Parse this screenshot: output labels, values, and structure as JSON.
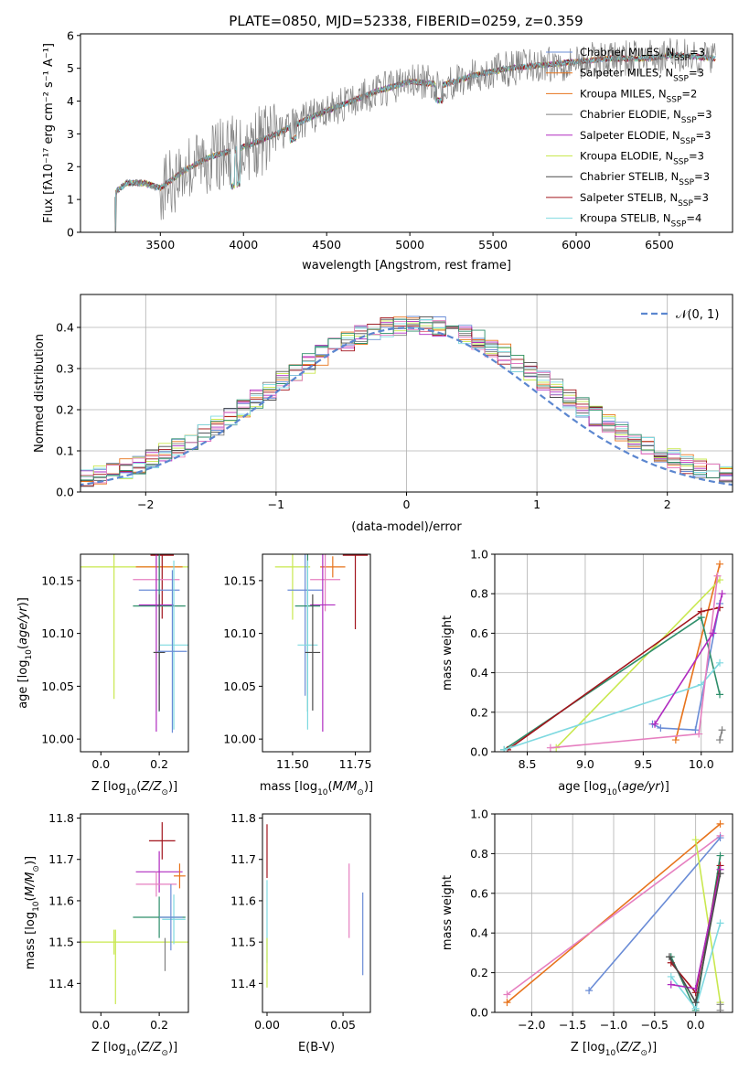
{
  "figure_title": "PLATE=0850, MJD=52338, FIBERID=0259, z=0.359",
  "colors": [
    "#6a8cd6",
    "#e7731b",
    "#7f7f7f",
    "#b02bc0",
    "#c9e84f",
    "#4a4a4a",
    "#a2141c",
    "#7ed9e0",
    "#e67fc0",
    "#2f8f6b"
  ],
  "chart_data": [
    {
      "id": "spectrum",
      "type": "line",
      "title": "PLATE=0850, MJD=52338, FIBERID=0259, z=0.359",
      "xlabel": "wavelength [Angstrom, rest frame]",
      "ylabel": "Flux [fλ10⁻¹⁷ erg cm⁻² s⁻¹ A⁻¹]",
      "xlim": [
        3020,
        6940
      ],
      "ylim": [
        0,
        6.05
      ],
      "xticks": [
        3500,
        4000,
        4500,
        5000,
        5500,
        6000,
        6500
      ],
      "yticks": [
        0,
        1,
        2,
        3,
        4,
        5,
        6
      ],
      "grid": false,
      "legend_position": "top-right",
      "data_x_range": [
        3225,
        6840
      ],
      "continuum": [
        [
          3225,
          1.2
        ],
        [
          3300,
          1.5
        ],
        [
          3400,
          1.5
        ],
        [
          3500,
          1.35
        ],
        [
          3650,
          1.9
        ],
        [
          3800,
          2.3
        ],
        [
          4000,
          2.6
        ],
        [
          4200,
          3.0
        ],
        [
          4400,
          3.5
        ],
        [
          4600,
          3.9
        ],
        [
          4800,
          4.3
        ],
        [
          5000,
          4.6
        ],
        [
          5200,
          4.5
        ],
        [
          5400,
          4.8
        ],
        [
          5600,
          5.0
        ],
        [
          5800,
          5.1
        ],
        [
          6000,
          5.2
        ],
        [
          6200,
          5.3
        ],
        [
          6400,
          5.3
        ],
        [
          6600,
          5.4
        ],
        [
          6840,
          5.3
        ]
      ],
      "series": [
        {
          "name": "Chabrier MILES",
          "nssp": "3"
        },
        {
          "name": "Salpeter MILES",
          "nssp": "3"
        },
        {
          "name": "Kroupa MILES",
          "nssp": "2"
        },
        {
          "name": "Chabrier ELODIE",
          "nssp": "3"
        },
        {
          "name": "Salpeter ELODIE",
          "nssp": "3"
        },
        {
          "name": "Kroupa ELODIE",
          "nssp": "3"
        },
        {
          "name": "Chabrier STELIB",
          "nssp": "3"
        },
        {
          "name": "Salpeter STELIB",
          "nssp": "3"
        },
        {
          "name": "Kroupa STELIB",
          "nssp": "4"
        }
      ],
      "legend_color_index": [
        0,
        1,
        1,
        2,
        3,
        4,
        5,
        6,
        7
      ],
      "nssp_label": "N",
      "nssp_sub": "SSP"
    },
    {
      "id": "residuals",
      "type": "histogram",
      "xlabel": "(data-model)/error",
      "ylabel": "Normed distribution",
      "xlim": [
        -2.5,
        2.5
      ],
      "ylim": [
        0,
        0.48
      ],
      "xticks": [
        -2,
        -1,
        0,
        1,
        2
      ],
      "yticks": [
        0,
        0.1,
        0.2,
        0.3,
        0.4
      ],
      "ytick_labels": [
        "0.0",
        "0.1",
        "0.2",
        "0.3",
        "0.4"
      ],
      "xtick_labels": [
        "−2",
        "−1",
        "0",
        "1",
        "2"
      ],
      "grid": true,
      "bin_width": 0.1,
      "reference_curve": {
        "name": "𝒩(0, 1)",
        "mean": 0,
        "sigma": 1,
        "style": "dashed"
      },
      "legend_position": "top-right"
    },
    {
      "id": "age_vs_Z",
      "type": "errorbar",
      "xlabel": "Z [log10(Z/Z⊙)]",
      "ylabel": "age  [log10(age/yr)]",
      "xlim": [
        -0.07,
        0.3
      ],
      "ylim": [
        9.988,
        10.175
      ],
      "xticks": [
        0,
        0.2
      ],
      "xtick_labels": [
        "0.0",
        "0.2"
      ],
      "yticks": [
        10.0,
        10.05,
        10.1,
        10.15
      ],
      "ytick_labels": [
        "10.00",
        "10.05",
        "10.10",
        "10.15"
      ],
      "points": [
        {
          "x": 0.045,
          "y": 10.163,
          "xerr": 0.26,
          "yerr": 0.125,
          "color": 4
        },
        {
          "x": 0.2,
          "y": 10.163,
          "xerr": 0.08,
          "yerr": 0.01,
          "color": 1
        },
        {
          "x": 0.21,
          "y": 10.174,
          "xerr": 0.04,
          "yerr": 0.06,
          "color": 6
        },
        {
          "x": 0.19,
          "y": 10.151,
          "xerr": 0.08,
          "yerr": 0.02,
          "color": 8
        },
        {
          "x": 0.2,
          "y": 10.141,
          "xerr": 0.07,
          "yerr": 0.09,
          "color": 0
        },
        {
          "x": 0.2,
          "y": 10.126,
          "xerr": 0.09,
          "yerr": 0.1,
          "color": 9
        },
        {
          "x": 0.19,
          "y": 10.127,
          "xerr": 0.06,
          "yerr": 0.12,
          "color": 3
        },
        {
          "x": 0.25,
          "y": 10.089,
          "xerr": 0.05,
          "yerr": 0.08,
          "color": 7
        },
        {
          "x": 0.2,
          "y": 10.082,
          "xerr": 0.02,
          "yerr": 0.055,
          "color": 5
        },
        {
          "x": 0.245,
          "y": 10.083,
          "xerr": 0.05,
          "yerr": 0.077,
          "color": 0
        }
      ]
    },
    {
      "id": "age_vs_mass",
      "type": "errorbar",
      "xlabel": "mass [log10(M/M⊙)]",
      "ylabel": "",
      "xlim": [
        11.38,
        11.81
      ],
      "ylim": [
        9.988,
        10.175
      ],
      "xticks": [
        11.5,
        11.75
      ],
      "xtick_labels": [
        "11.50",
        "11.75"
      ],
      "yticks": [
        10.0,
        10.05,
        10.1,
        10.15
      ],
      "ytick_labels": [
        "10.00",
        "10.05",
        "10.10",
        "10.15"
      ],
      "points": [
        {
          "x": 11.5,
          "y": 10.163,
          "xerr": 0.07,
          "yerr": 0.05,
          "color": 4
        },
        {
          "x": 11.66,
          "y": 10.163,
          "xerr": 0.05,
          "yerr": 0.01,
          "color": 1
        },
        {
          "x": 11.75,
          "y": 10.174,
          "xerr": 0.05,
          "yerr": 0.07,
          "color": 6
        },
        {
          "x": 11.63,
          "y": 10.151,
          "xerr": 0.06,
          "yerr": 0.03,
          "color": 8
        },
        {
          "x": 11.55,
          "y": 10.141,
          "xerr": 0.07,
          "yerr": 0.1,
          "color": 0
        },
        {
          "x": 11.56,
          "y": 10.126,
          "xerr": 0.05,
          "yerr": 0.1,
          "color": 9
        },
        {
          "x": 11.62,
          "y": 10.127,
          "xerr": 0.05,
          "yerr": 0.12,
          "color": 3
        },
        {
          "x": 11.56,
          "y": 10.089,
          "xerr": 0.04,
          "yerr": 0.08,
          "color": 7
        },
        {
          "x": 11.58,
          "y": 10.082,
          "xerr": 0.03,
          "yerr": 0.055,
          "color": 5
        }
      ]
    },
    {
      "id": "weight_vs_age",
      "type": "line",
      "xlabel": "age  [log10(age/yr)]",
      "ylabel": "mass weight",
      "xlim": [
        8.22,
        10.27
      ],
      "ylim": [
        0,
        1
      ],
      "xticks": [
        8.5,
        9.0,
        9.5,
        10.0
      ],
      "xtick_labels": [
        "8.5",
        "9.0",
        "9.5",
        "10.0"
      ],
      "yticks": [
        0,
        0.2,
        0.4,
        0.6,
        0.8,
        1.0
      ],
      "ytick_labels": [
        "0.0",
        "0.2",
        "0.4",
        "0.6",
        "0.8",
        "1.0"
      ],
      "grid": true,
      "series": [
        {
          "color": 0,
          "points": [
            [
              9.58,
              0.14
            ],
            [
              9.65,
              0.12
            ],
            [
              9.95,
              0.11
            ],
            [
              10.16,
              0.75
            ]
          ]
        },
        {
          "color": 1,
          "points": [
            [
              9.78,
              0.06
            ],
            [
              10.16,
              0.95
            ]
          ]
        },
        {
          "color": 4,
          "points": [
            [
              8.75,
              0.02
            ],
            [
              10.16,
              0.87
            ]
          ]
        },
        {
          "color": 9,
          "points": [
            [
              8.3,
              0.01
            ],
            [
              10.0,
              0.68
            ],
            [
              10.16,
              0.29
            ]
          ]
        },
        {
          "color": 6,
          "points": [
            [
              8.33,
              0.01
            ],
            [
              10.0,
              0.71
            ],
            [
              10.16,
              0.73
            ]
          ]
        },
        {
          "color": 7,
          "points": [
            [
              8.3,
              0.01
            ],
            [
              10.0,
              0.34
            ],
            [
              10.16,
              0.45
            ]
          ]
        },
        {
          "color": 8,
          "points": [
            [
              8.7,
              0.02
            ],
            [
              9.98,
              0.09
            ],
            [
              10.14,
              0.89
            ]
          ]
        },
        {
          "color": 3,
          "points": [
            [
              9.6,
              0.14
            ],
            [
              10.1,
              0.6
            ],
            [
              10.18,
              0.8
            ]
          ]
        },
        {
          "color": 2,
          "points": [
            [
              10.16,
              0.06
            ],
            [
              10.18,
              0.11
            ]
          ]
        }
      ]
    },
    {
      "id": "mass_vs_Z",
      "type": "errorbar",
      "xlabel": "Z [log10(Z/Z⊙)]",
      "ylabel": "mass [log10(M/M⊙)]",
      "xlim": [
        -0.07,
        0.3
      ],
      "ylim": [
        11.33,
        11.81
      ],
      "xticks": [
        0,
        0.2
      ],
      "xtick_labels": [
        "0.0",
        "0.2"
      ],
      "yticks": [
        11.4,
        11.5,
        11.6,
        11.7,
        11.8
      ],
      "ytick_labels": [
        "11.4",
        "11.5",
        "11.6",
        "11.7",
        "11.8"
      ],
      "points": [
        {
          "x": 0.045,
          "y": 11.5,
          "xerr": 0.26,
          "yerr": 0.03,
          "color": 4
        },
        {
          "x": 0.21,
          "y": 11.745,
          "xerr": 0.045,
          "yerr": 0.045,
          "color": 6
        },
        {
          "x": 0.2,
          "y": 11.67,
          "xerr": 0.08,
          "yerr": 0.05,
          "color": 3
        },
        {
          "x": 0.19,
          "y": 11.64,
          "xerr": 0.07,
          "yerr": 0.03,
          "color": 8
        },
        {
          "x": 0.27,
          "y": 11.66,
          "xerr": 0.02,
          "yerr": 0.03,
          "color": 1
        },
        {
          "x": 0.2,
          "y": 11.56,
          "xerr": 0.09,
          "yerr": 0.05,
          "color": 9
        },
        {
          "x": 0.25,
          "y": 11.555,
          "xerr": 0.04,
          "yerr": 0.06,
          "color": 7
        },
        {
          "x": 0.24,
          "y": 11.56,
          "xerr": 0.04,
          "yerr": 0.08,
          "color": 0
        },
        {
          "x": 0.05,
          "y": 11.44,
          "xerr": 0.0,
          "yerr": 0.09,
          "color": 4
        },
        {
          "x": 0.22,
          "y": 11.47,
          "xerr": 0.0,
          "yerr": 0.04,
          "color": 2
        }
      ]
    },
    {
      "id": "mass_vs_ebv",
      "type": "errorbar",
      "xlabel": "E(B-V)",
      "ylabel": "",
      "xlim": [
        -0.003,
        0.068
      ],
      "ylim": [
        11.33,
        11.81
      ],
      "xticks": [
        0.0,
        0.05
      ],
      "xtick_labels": [
        "0.00",
        "0.05"
      ],
      "yticks": [
        11.4,
        11.5,
        11.6,
        11.7,
        11.8
      ],
      "ytick_labels": [
        "11.4",
        "11.5",
        "11.6",
        "11.7",
        "11.8"
      ],
      "points": [
        {
          "x": 0.0,
          "y": 11.72,
          "xerr": 0,
          "yerr": 0.065,
          "color": 6
        },
        {
          "x": 0.0,
          "y": 11.55,
          "xerr": 0,
          "yerr": 0.1,
          "color": 7
        },
        {
          "x": 0.0,
          "y": 11.45,
          "xerr": 0,
          "yerr": 0.06,
          "color": 4
        },
        {
          "x": 0.054,
          "y": 11.6,
          "xerr": 0,
          "yerr": 0.09,
          "color": 8
        },
        {
          "x": 0.063,
          "y": 11.52,
          "xerr": 0,
          "yerr": 0.1,
          "color": 0
        }
      ]
    },
    {
      "id": "weight_vs_Z",
      "type": "line",
      "xlabel": "Z [log10(Z/Z⊙)]",
      "ylabel": "mass weight",
      "xlim": [
        -2.45,
        0.45
      ],
      "ylim": [
        0,
        1
      ],
      "xticks": [
        -2.0,
        -1.5,
        -1.0,
        -0.5,
        0.0
      ],
      "xtick_labels": [
        "−2.0",
        "−1.5",
        "−1.0",
        "−0.5",
        "0.0"
      ],
      "yticks": [
        0,
        0.2,
        0.4,
        0.6,
        0.8,
        1.0
      ],
      "ytick_labels": [
        "0.0",
        "0.2",
        "0.4",
        "0.6",
        "0.8",
        "1.0"
      ],
      "grid": true,
      "series": [
        {
          "color": 1,
          "points": [
            [
              -2.3,
              0.05
            ],
            [
              0.3,
              0.95
            ]
          ]
        },
        {
          "color": 8,
          "points": [
            [
              -2.3,
              0.09
            ],
            [
              0.3,
              0.89
            ]
          ]
        },
        {
          "color": 0,
          "points": [
            [
              -1.3,
              0.11
            ],
            [
              0.3,
              0.88
            ]
          ]
        },
        {
          "color": 4,
          "points": [
            [
              0.0,
              0.87
            ],
            [
              0.3,
              0.05
            ]
          ]
        },
        {
          "color": 9,
          "points": [
            [
              -0.3,
              0.28
            ],
            [
              0.0,
              0.01
            ],
            [
              0.3,
              0.79
            ]
          ]
        },
        {
          "color": 6,
          "points": [
            [
              -0.3,
              0.25
            ],
            [
              0.0,
              0.1
            ],
            [
              0.3,
              0.74
            ]
          ]
        },
        {
          "color": 7,
          "points": [
            [
              -0.3,
              0.18
            ],
            [
              0.0,
              0.02
            ],
            [
              0.3,
              0.45
            ]
          ]
        },
        {
          "color": 3,
          "points": [
            [
              -0.3,
              0.14
            ],
            [
              0.0,
              0.12
            ],
            [
              0.3,
              0.72
            ]
          ]
        },
        {
          "color": 5,
          "points": [
            [
              -0.32,
              0.28
            ],
            [
              0.0,
              0.05
            ],
            [
              0.3,
              0.7
            ]
          ]
        },
        {
          "color": 2,
          "points": [
            [
              0.3,
              0.01
            ],
            [
              0.3,
              0.04
            ]
          ]
        }
      ]
    }
  ]
}
